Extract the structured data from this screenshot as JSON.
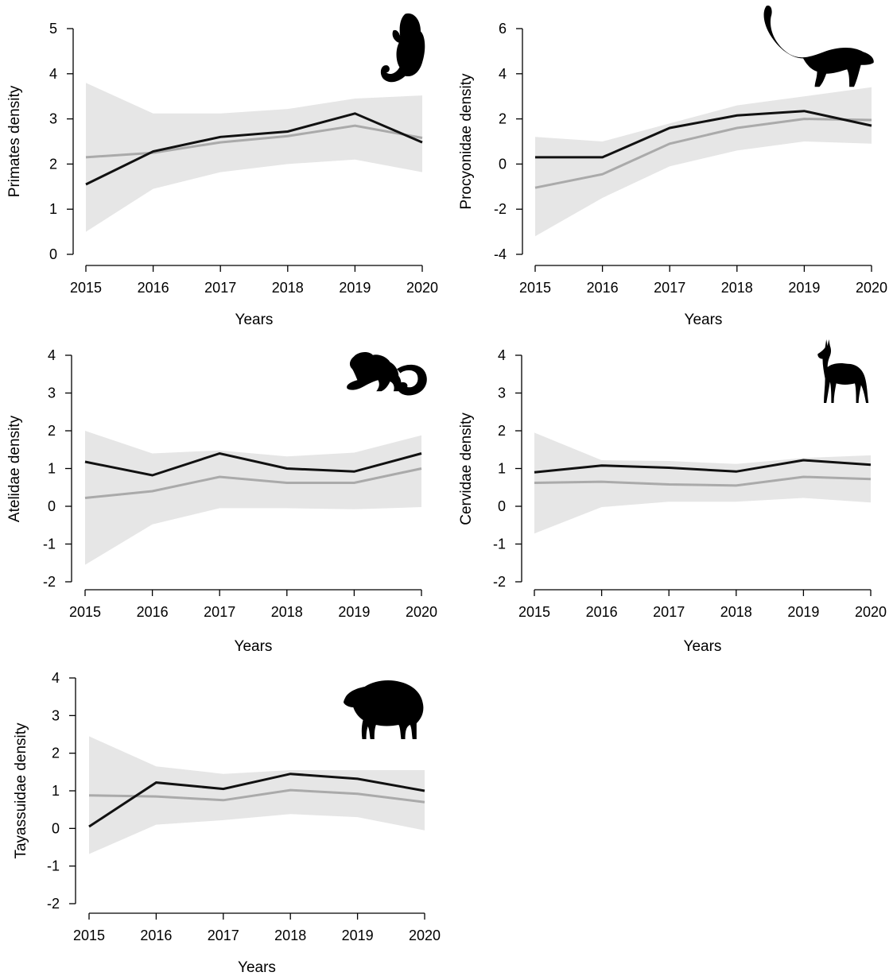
{
  "colors": {
    "observed_line": "#111111",
    "predicted_line": "#aaaaaa",
    "credible_band": "#e6e6e6",
    "axis": "#000000"
  },
  "chart_data": [
    {
      "type": "line",
      "animal_icon": "monkey-silhouette-icon",
      "xlabel": "Years",
      "ylabel": "Primates density",
      "x": [
        2015,
        2016,
        2017,
        2018,
        2019,
        2020
      ],
      "xticks": [
        "2015",
        "2016",
        "2017",
        "2018",
        "2019",
        "2020"
      ],
      "ylim": [
        0,
        5
      ],
      "yticks": [
        "0",
        "1",
        "2",
        "3",
        "4",
        "5"
      ],
      "observed": [
        1.55,
        2.28,
        2.6,
        2.72,
        3.12,
        2.48
      ],
      "predicted": [
        2.15,
        2.25,
        2.48,
        2.62,
        2.85,
        2.58
      ],
      "band_upper": [
        3.8,
        3.12,
        3.12,
        3.22,
        3.45,
        3.52
      ],
      "band_lower": [
        0.5,
        1.45,
        1.82,
        2.0,
        2.1,
        1.82
      ]
    },
    {
      "type": "line",
      "animal_icon": "coati-silhouette-icon",
      "xlabel": "Years",
      "ylabel": "Procyonidae density",
      "x": [
        2015,
        2016,
        2017,
        2018,
        2019,
        2020
      ],
      "xticks": [
        "2015",
        "2016",
        "2017",
        "2018",
        "2019",
        "2020"
      ],
      "ylim": [
        -4,
        6
      ],
      "yticks": [
        "-4",
        "-2",
        "0",
        "2",
        "4",
        "6"
      ],
      "observed": [
        0.3,
        0.3,
        1.6,
        2.15,
        2.35,
        1.7
      ],
      "predicted": [
        -1.05,
        -0.45,
        0.9,
        1.6,
        2.0,
        1.95
      ],
      "band_upper": [
        1.2,
        1.0,
        1.8,
        2.6,
        3.0,
        3.4
      ],
      "band_lower": [
        -3.2,
        -1.5,
        -0.1,
        0.6,
        1.0,
        0.9
      ]
    },
    {
      "type": "line",
      "animal_icon": "spider-monkey-silhouette-icon",
      "xlabel": "Years",
      "ylabel": "Atelidae density",
      "x": [
        2015,
        2016,
        2017,
        2018,
        2019,
        2020
      ],
      "xticks": [
        "2015",
        "2016",
        "2017",
        "2018",
        "2019",
        "2020"
      ],
      "ylim": [
        -2,
        4
      ],
      "yticks": [
        "-2",
        "-1",
        "0",
        "1",
        "2",
        "3",
        "4"
      ],
      "observed": [
        1.18,
        0.82,
        1.4,
        1.0,
        0.92,
        1.4
      ],
      "predicted": [
        0.22,
        0.4,
        0.78,
        0.62,
        0.62,
        1.0
      ],
      "band_upper": [
        2.0,
        1.4,
        1.48,
        1.32,
        1.42,
        1.88
      ],
      "band_lower": [
        -1.55,
        -0.48,
        -0.05,
        -0.05,
        -0.08,
        -0.02
      ]
    },
    {
      "type": "line",
      "animal_icon": "deer-silhouette-icon",
      "xlabel": "Years",
      "ylabel": "Cervidae density",
      "x": [
        2015,
        2016,
        2017,
        2018,
        2019,
        2020
      ],
      "xticks": [
        "2015",
        "2016",
        "2017",
        "2018",
        "2019",
        "2020"
      ],
      "ylim": [
        -2,
        4
      ],
      "yticks": [
        "-2",
        "-1",
        "0",
        "1",
        "2",
        "3",
        "4"
      ],
      "observed": [
        0.9,
        1.08,
        1.02,
        0.92,
        1.22,
        1.1
      ],
      "predicted": [
        0.62,
        0.65,
        0.58,
        0.55,
        0.78,
        0.72
      ],
      "band_upper": [
        1.95,
        1.22,
        1.2,
        1.12,
        1.28,
        1.35
      ],
      "band_lower": [
        -0.72,
        -0.02,
        0.12,
        0.12,
        0.22,
        0.1
      ]
    },
    {
      "type": "line",
      "animal_icon": "peccary-silhouette-icon",
      "xlabel": "Years",
      "ylabel": "Tayassuidae density",
      "x": [
        2015,
        2016,
        2017,
        2018,
        2019,
        2020
      ],
      "xticks": [
        "2015",
        "2016",
        "2017",
        "2018",
        "2019",
        "2020"
      ],
      "ylim": [
        -2,
        4
      ],
      "yticks": [
        "-2",
        "-1",
        "0",
        "1",
        "2",
        "3",
        "4"
      ],
      "observed": [
        0.05,
        1.22,
        1.05,
        1.45,
        1.32,
        1.0
      ],
      "predicted": [
        0.88,
        0.85,
        0.75,
        1.02,
        0.92,
        0.7
      ],
      "band_upper": [
        2.45,
        1.65,
        1.45,
        1.55,
        1.55,
        1.55
      ],
      "band_lower": [
        -0.68,
        0.1,
        0.22,
        0.38,
        0.3,
        -0.05
      ]
    }
  ]
}
